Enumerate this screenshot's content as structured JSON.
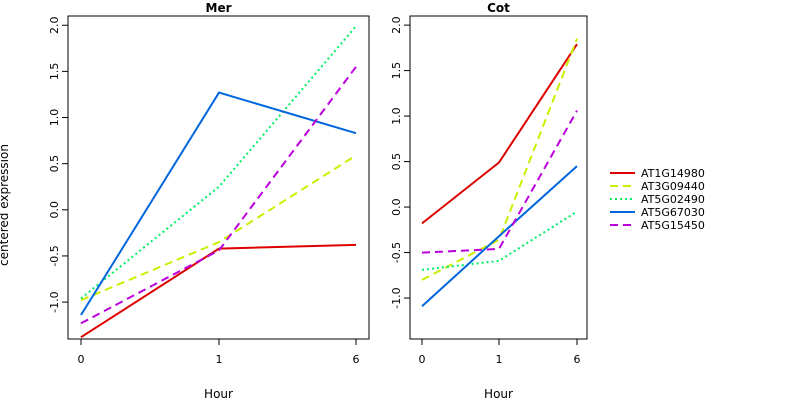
{
  "chart_data": {
    "type": "line",
    "ylabel": "centered expression",
    "legend_position": "right",
    "x_categories": [
      "0",
      "1",
      "6"
    ],
    "series_styles": [
      {
        "name": "AT1G14980",
        "color": "#dd0000",
        "dash": "solid"
      },
      {
        "name": "AT3G09440",
        "color": "#ccee00",
        "dash": "dashed"
      },
      {
        "name": "AT5G02490",
        "color": "#00ee66",
        "dash": "dotted"
      },
      {
        "name": "AT5G67030",
        "color": "#0066dd",
        "dash": "solid"
      },
      {
        "name": "AT5G15450",
        "color": "#bb00dd",
        "dash": "dashed"
      }
    ],
    "panels": [
      {
        "title": "Mer",
        "xlabel": "Hour",
        "ylim": [
          -1.4,
          2.1
        ],
        "yticks": [
          "-1.0",
          "-0.5",
          "0.0",
          "0.5",
          "1.0",
          "1.5",
          "2.0"
        ],
        "series": [
          {
            "name": "AT1G14980",
            "values": [
              -1.38,
              -0.42,
              -0.38
            ]
          },
          {
            "name": "AT3G09440",
            "values": [
              -0.98,
              -0.35,
              0.59
            ]
          },
          {
            "name": "AT5G02490",
            "values": [
              -0.96,
              0.25,
              1.99
            ]
          },
          {
            "name": "AT5G67030",
            "values": [
              -1.14,
              1.27,
              0.83
            ]
          },
          {
            "name": "AT5G15450",
            "values": [
              -1.23,
              -0.44,
              1.55
            ]
          }
        ]
      },
      {
        "title": "Cot",
        "xlabel": "Hour",
        "ylim": [
          -1.45,
          2.1
        ],
        "yticks": [
          "-1.0",
          "-0.5",
          "0.0",
          "0.5",
          "1.0",
          "1.5",
          "2.0"
        ],
        "series": [
          {
            "name": "AT1G14980",
            "values": [
              -0.18,
              0.49,
              1.79
            ]
          },
          {
            "name": "AT3G09440",
            "values": [
              -0.8,
              -0.36,
              1.85
            ]
          },
          {
            "name": "AT5G02490",
            "values": [
              -0.69,
              -0.59,
              -0.05
            ]
          },
          {
            "name": "AT5G67030",
            "values": [
              -1.09,
              -0.32,
              0.45
            ]
          },
          {
            "name": "AT5G15450",
            "values": [
              -0.5,
              -0.46,
              1.06
            ]
          }
        ]
      }
    ]
  }
}
